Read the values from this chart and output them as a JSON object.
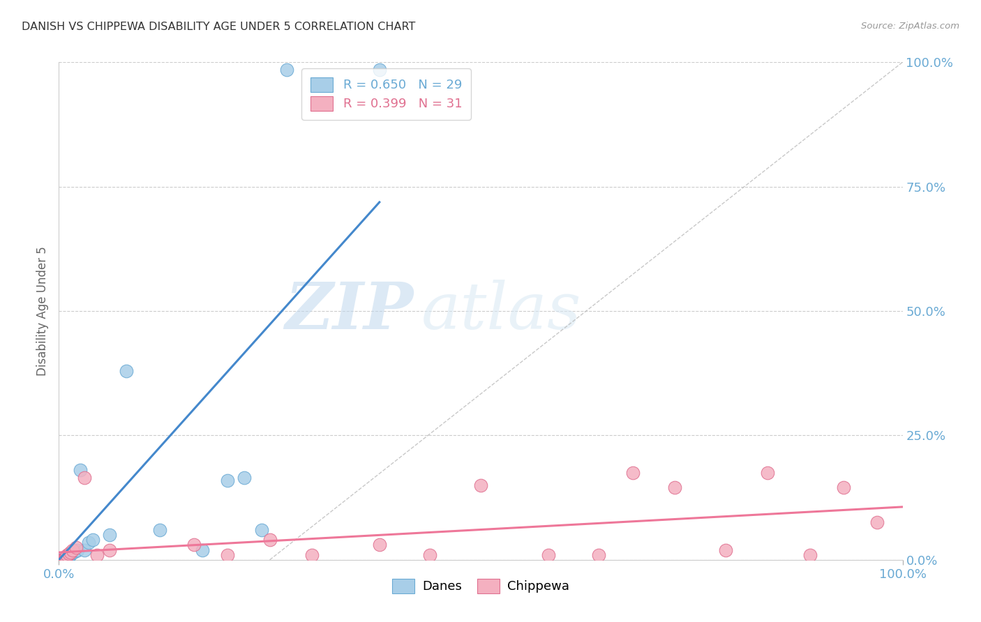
{
  "title": "DANISH VS CHIPPEWA DISABILITY AGE UNDER 5 CORRELATION CHART",
  "source": "Source: ZipAtlas.com",
  "ylabel": "Disability Age Under 5",
  "xlim": [
    0.0,
    1.0
  ],
  "ylim": [
    0.0,
    1.0
  ],
  "xtick_positions": [
    0.0,
    1.0
  ],
  "xtick_labels": [
    "0.0%",
    "100.0%"
  ],
  "ytick_positions": [
    0.0,
    0.25,
    0.5,
    0.75,
    1.0
  ],
  "ytick_labels": [
    "0.0%",
    "25.0%",
    "50.0%",
    "75.0%",
    "100.0%"
  ],
  "watermark_zip": "ZIP",
  "watermark_atlas": "atlas",
  "danes_color": "#A8CEE8",
  "danes_edge_color": "#6AAAD4",
  "chippewa_color": "#F4B0C0",
  "chippewa_edge_color": "#E07090",
  "legend_danes_label": "Danes",
  "legend_chippewa_label": "Chippewa",
  "R_danes": 0.65,
  "N_danes": 29,
  "R_chippewa": 0.399,
  "N_chippewa": 31,
  "danes_color_text": "#6AAAD4",
  "chippewa_color_text": "#E07090",
  "tick_color": "#6AAAD4",
  "danes_x": [
    0.002,
    0.003,
    0.004,
    0.005,
    0.006,
    0.007,
    0.008,
    0.009,
    0.01,
    0.011,
    0.012,
    0.013,
    0.015,
    0.017,
    0.02,
    0.022,
    0.025,
    0.03,
    0.035,
    0.04,
    0.06,
    0.08,
    0.12,
    0.17,
    0.2,
    0.22,
    0.24,
    0.27,
    0.38
  ],
  "danes_y": [
    0.0,
    0.0,
    0.0,
    0.0,
    0.0,
    0.0,
    0.0,
    0.002,
    0.003,
    0.005,
    0.007,
    0.01,
    0.012,
    0.015,
    0.018,
    0.02,
    0.18,
    0.02,
    0.035,
    0.04,
    0.05,
    0.38,
    0.06,
    0.02,
    0.16,
    0.165,
    0.06,
    0.985,
    0.985
  ],
  "chippewa_x": [
    0.003,
    0.004,
    0.005,
    0.006,
    0.007,
    0.008,
    0.009,
    0.01,
    0.012,
    0.014,
    0.016,
    0.02,
    0.03,
    0.045,
    0.06,
    0.16,
    0.2,
    0.25,
    0.3,
    0.38,
    0.44,
    0.5,
    0.58,
    0.64,
    0.68,
    0.73,
    0.79,
    0.84,
    0.89,
    0.93,
    0.97
  ],
  "chippewa_y": [
    0.0,
    0.0,
    0.0,
    0.0,
    0.002,
    0.004,
    0.006,
    0.01,
    0.012,
    0.015,
    0.02,
    0.025,
    0.165,
    0.01,
    0.02,
    0.03,
    0.01,
    0.04,
    0.01,
    0.03,
    0.01,
    0.15,
    0.01,
    0.01,
    0.175,
    0.145,
    0.02,
    0.175,
    0.01,
    0.145,
    0.075
  ],
  "grid_color": "#CCCCCC",
  "background_color": "#FFFFFF",
  "title_color": "#333333",
  "blue_line_color": "#4488CC",
  "pink_line_color": "#EE7799",
  "gray_dash_color": "#BBBBBB"
}
